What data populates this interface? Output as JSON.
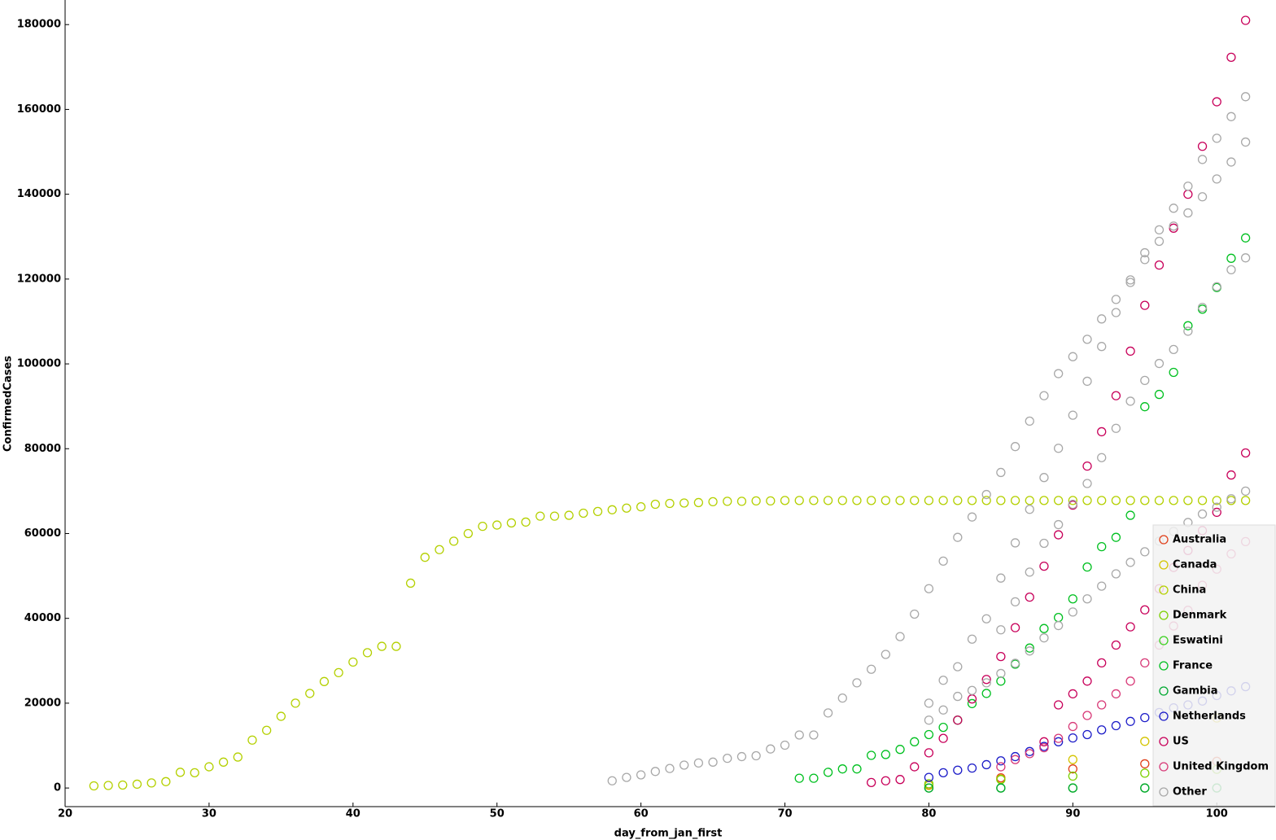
{
  "chart_data": {
    "type": "scatter",
    "x_label": "day_from_jan_first",
    "y_label": "ConfirmedCases",
    "xlim": [
      20,
      104
    ],
    "ylim": [
      -4200,
      185800
    ],
    "xticks": [
      20,
      30,
      40,
      50,
      60,
      70,
      80,
      90,
      100
    ],
    "yticks": [
      0,
      20000,
      40000,
      60000,
      80000,
      100000,
      120000,
      140000,
      160000,
      180000
    ],
    "legend": "lower right",
    "series": [
      {
        "name": "Australia",
        "color": "#e0401a",
        "x": [
          80,
          85,
          90,
          95,
          100
        ],
        "values": [
          700,
          2400,
          4500,
          5700,
          6300
        ]
      },
      {
        "name": "Canada",
        "color": "#d4c400",
        "x": [
          80,
          85,
          90,
          95,
          100
        ],
        "values": [
          600,
          2100,
          6700,
          11000,
          16500
        ]
      },
      {
        "name": "China",
        "color": "#b4d000",
        "x": [
          22,
          23,
          24,
          25,
          26,
          27,
          28,
          29,
          30,
          31,
          32,
          33,
          34,
          35,
          36,
          37,
          38,
          39,
          40,
          41,
          42,
          43,
          44,
          45,
          46,
          47,
          48,
          49,
          50,
          51,
          52,
          53,
          54,
          55,
          56,
          57,
          58,
          59,
          60,
          61,
          62,
          63,
          64,
          65,
          66,
          67,
          68,
          69,
          70,
          71,
          72,
          73,
          74,
          75,
          76,
          77,
          78,
          79,
          80,
          81,
          82,
          83,
          84,
          85,
          86,
          87,
          88,
          89,
          90,
          91,
          92,
          93,
          94,
          95,
          96,
          97,
          98,
          99,
          100,
          101,
          102
        ],
        "values": [
          500,
          600,
          700,
          900,
          1200,
          1500,
          3700,
          3600,
          5000,
          6100,
          7300,
          11300,
          13600,
          16900,
          20000,
          22300,
          25100,
          27200,
          29700,
          31900,
          33400,
          33400,
          48300,
          54400,
          56200,
          58200,
          60000,
          61700,
          62000,
          62500,
          62700,
          64100,
          64100,
          64300,
          64800,
          65200,
          65600,
          66000,
          66300,
          66900,
          67100,
          67200,
          67300,
          67500,
          67600,
          67600,
          67700,
          67700,
          67800,
          67800,
          67800,
          67800,
          67800,
          67800,
          67800,
          67800,
          67800,
          67800,
          67800,
          67800,
          67800,
          67800,
          67800,
          67800,
          67800,
          67800,
          67800,
          67800,
          67800,
          67800,
          67800,
          67800,
          67800,
          67800,
          67800,
          67800,
          67800,
          67800,
          67800,
          67800,
          67800
        ]
      },
      {
        "name": "Denmark",
        "color": "#7cd000",
        "x": [
          80,
          85,
          90,
          95,
          100
        ],
        "values": [
          1000,
          2000,
          2800,
          3500,
          4400
        ]
      },
      {
        "name": "Eswatini",
        "color": "#3cd020",
        "x": [
          80,
          85,
          90,
          95,
          100
        ],
        "values": [
          0,
          9,
          9,
          9,
          12
        ]
      },
      {
        "name": "France",
        "color": "#00c020",
        "x": [
          71,
          72,
          73,
          74,
          75,
          76,
          77,
          78,
          79,
          80,
          81,
          82,
          83,
          84,
          85,
          86,
          87,
          88,
          89,
          90,
          91,
          92,
          93,
          94,
          95,
          96,
          97,
          98,
          99,
          100,
          101,
          102
        ],
        "values": [
          2300,
          2300,
          3700,
          4500,
          4500,
          7700,
          7900,
          9100,
          10900,
          12600,
          14300,
          16000,
          19900,
          22300,
          25200,
          29200,
          33000,
          37600,
          40200,
          44600,
          52100,
          56900,
          59100,
          64300,
          89900,
          92800,
          98000,
          109000,
          112900,
          118000,
          124900,
          129700
        ]
      },
      {
        "name": "Gambia",
        "color": "#00a830",
        "x": [
          80,
          85,
          90,
          95,
          100
        ],
        "values": [
          1,
          3,
          4,
          4,
          4
        ]
      },
      {
        "name": "Netherlands",
        "color": "#1c1cc8",
        "x": [
          80,
          81,
          82,
          83,
          84,
          85,
          86,
          87,
          88,
          89,
          90,
          91,
          92,
          93,
          94,
          95,
          96,
          97,
          98,
          99,
          100,
          101,
          102
        ],
        "values": [
          2500,
          3600,
          4200,
          4700,
          5500,
          6400,
          7400,
          8600,
          9800,
          10900,
          11800,
          12600,
          13700,
          14700,
          15700,
          16600,
          17800,
          18900,
          19600,
          20500,
          21800,
          22900,
          23900
        ]
      },
      {
        "name": "US",
        "color": "#c8005a",
        "x": [
          76,
          77,
          78,
          79,
          80,
          81,
          82,
          83,
          84,
          85,
          86,
          87,
          88,
          89,
          90,
          91,
          92,
          93,
          94,
          95,
          96,
          97,
          98,
          99,
          100,
          101,
          102,
          88,
          89,
          90,
          91,
          92,
          93,
          94,
          95,
          96,
          97,
          98,
          99,
          100,
          101,
          102
        ],
        "values": [
          1300,
          1700,
          2000,
          5000,
          8300,
          11700,
          16000,
          21000,
          25600,
          31000,
          37800,
          45000,
          52300,
          59700,
          66700,
          75900,
          84000,
          92500,
          103000,
          113800,
          123300,
          132000,
          140000,
          151300,
          161800,
          172300,
          181000,
          10900,
          19600,
          22200,
          25200,
          29500,
          33700,
          38000,
          42000,
          47000,
          52000,
          56000,
          60700,
          65000,
          73800,
          79000
        ]
      },
      {
        "name": "United Kingdom",
        "color": "#d83a78",
        "x": [
          85,
          86,
          87,
          88,
          89,
          90,
          91,
          92,
          93,
          94,
          95,
          96,
          97,
          98,
          99,
          100,
          101,
          102
        ],
        "values": [
          5000,
          6700,
          8100,
          9500,
          11700,
          14500,
          17100,
          19600,
          22200,
          25200,
          29500,
          33700,
          38200,
          41900,
          47800,
          51600,
          55200,
          58100
        ]
      },
      {
        "name": "Other",
        "color": "#a8a8a8",
        "x": [
          58,
          59,
          60,
          61,
          62,
          63,
          64,
          65,
          66,
          67,
          68,
          69,
          70,
          71,
          72,
          73,
          74,
          75,
          76,
          77,
          78,
          79,
          80,
          81,
          82,
          83,
          84,
          85,
          86,
          87,
          88,
          89,
          90,
          91,
          92,
          93,
          94,
          95,
          96,
          97,
          98,
          99,
          100,
          101,
          102,
          80,
          81,
          82,
          83,
          84,
          85,
          86,
          87,
          88,
          89,
          90,
          91,
          92,
          93,
          94,
          95,
          96,
          97,
          98,
          99,
          100,
          101,
          102,
          85,
          86,
          87,
          88,
          89,
          90,
          91,
          92,
          93,
          94,
          95,
          96,
          97,
          98,
          99,
          100,
          101,
          102,
          80,
          81,
          82,
          83,
          84,
          85,
          86,
          87,
          88,
          89,
          90,
          91,
          92,
          93,
          94,
          95,
          96,
          97,
          98,
          99,
          100,
          101,
          102
        ],
        "values": [
          1700,
          2500,
          3100,
          3900,
          4600,
          5400,
          5900,
          6100,
          7000,
          7400,
          7600,
          9200,
          10100,
          12500,
          12500,
          17700,
          21200,
          24800,
          28000,
          31500,
          35700,
          41000,
          47000,
          53500,
          59100,
          63900,
          69200,
          74400,
          80500,
          86500,
          92500,
          97700,
          101700,
          105800,
          110600,
          115200,
          119800,
          124600,
          128900,
          132500,
          135600,
          139400,
          143600,
          147600,
          152300,
          20000,
          25400,
          28600,
          35100,
          39900,
          49500,
          57800,
          65700,
          73200,
          80100,
          87900,
          95900,
          104100,
          112100,
          119200,
          126200,
          131600,
          136700,
          141900,
          148200,
          153200,
          158300,
          163000,
          37300,
          43900,
          50900,
          57700,
          62100,
          66900,
          71800,
          77900,
          84800,
          91200,
          96100,
          100100,
          103400,
          107700,
          113300,
          118200,
          122200,
          125000,
          16000,
          18400,
          21600,
          23000,
          24800,
          27000,
          29400,
          32300,
          35400,
          38300,
          41500,
          44600,
          47600,
          50500,
          53200,
          55700,
          58200,
          60500,
          62600,
          64600,
          66200,
          68200,
          70000
        ]
      }
    ]
  }
}
